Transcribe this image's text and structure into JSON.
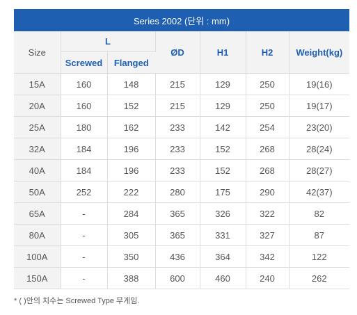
{
  "table": {
    "title": "Series 2002 (단위 : mm)",
    "headers": {
      "size": "Size",
      "l": "L",
      "screwed": "Screwed",
      "flanged": "Flanged",
      "od": "ØD",
      "h1": "H1",
      "h2": "H2",
      "weight": "Weight(kg)"
    },
    "rows": [
      {
        "size": "15A",
        "screwed": "160",
        "flanged": "148",
        "od": "215",
        "h1": "129",
        "h2": "250",
        "weight": "19(16)"
      },
      {
        "size": "20A",
        "screwed": "160",
        "flanged": "152",
        "od": "215",
        "h1": "129",
        "h2": "250",
        "weight": "19(17)"
      },
      {
        "size": "25A",
        "screwed": "180",
        "flanged": "162",
        "od": "233",
        "h1": "142",
        "h2": "254",
        "weight": "23(20)"
      },
      {
        "size": "32A",
        "screwed": "184",
        "flanged": "196",
        "od": "233",
        "h1": "152",
        "h2": "268",
        "weight": "28(24)"
      },
      {
        "size": "40A",
        "screwed": "184",
        "flanged": "196",
        "od": "233",
        "h1": "152",
        "h2": "268",
        "weight": "28(27)"
      },
      {
        "size": "50A",
        "screwed": "252",
        "flanged": "222",
        "od": "280",
        "h1": "175",
        "h2": "290",
        "weight": "42(37)"
      },
      {
        "size": "65A",
        "screwed": "-",
        "flanged": "284",
        "od": "365",
        "h1": "326",
        "h2": "322",
        "weight": "82"
      },
      {
        "size": "80A",
        "screwed": "-",
        "flanged": "305",
        "od": "365",
        "h1": "331",
        "h2": "327",
        "weight": "87"
      },
      {
        "size": "100A",
        "screwed": "-",
        "flanged": "350",
        "od": "436",
        "h1": "364",
        "h2": "342",
        "weight": "122"
      },
      {
        "size": "150A",
        "screwed": "-",
        "flanged": "388",
        "od": "600",
        "h1": "460",
        "h2": "240",
        "weight": "262"
      }
    ]
  },
  "footnote": "* ( )안의 치수는 Screwed Type 무게임."
}
